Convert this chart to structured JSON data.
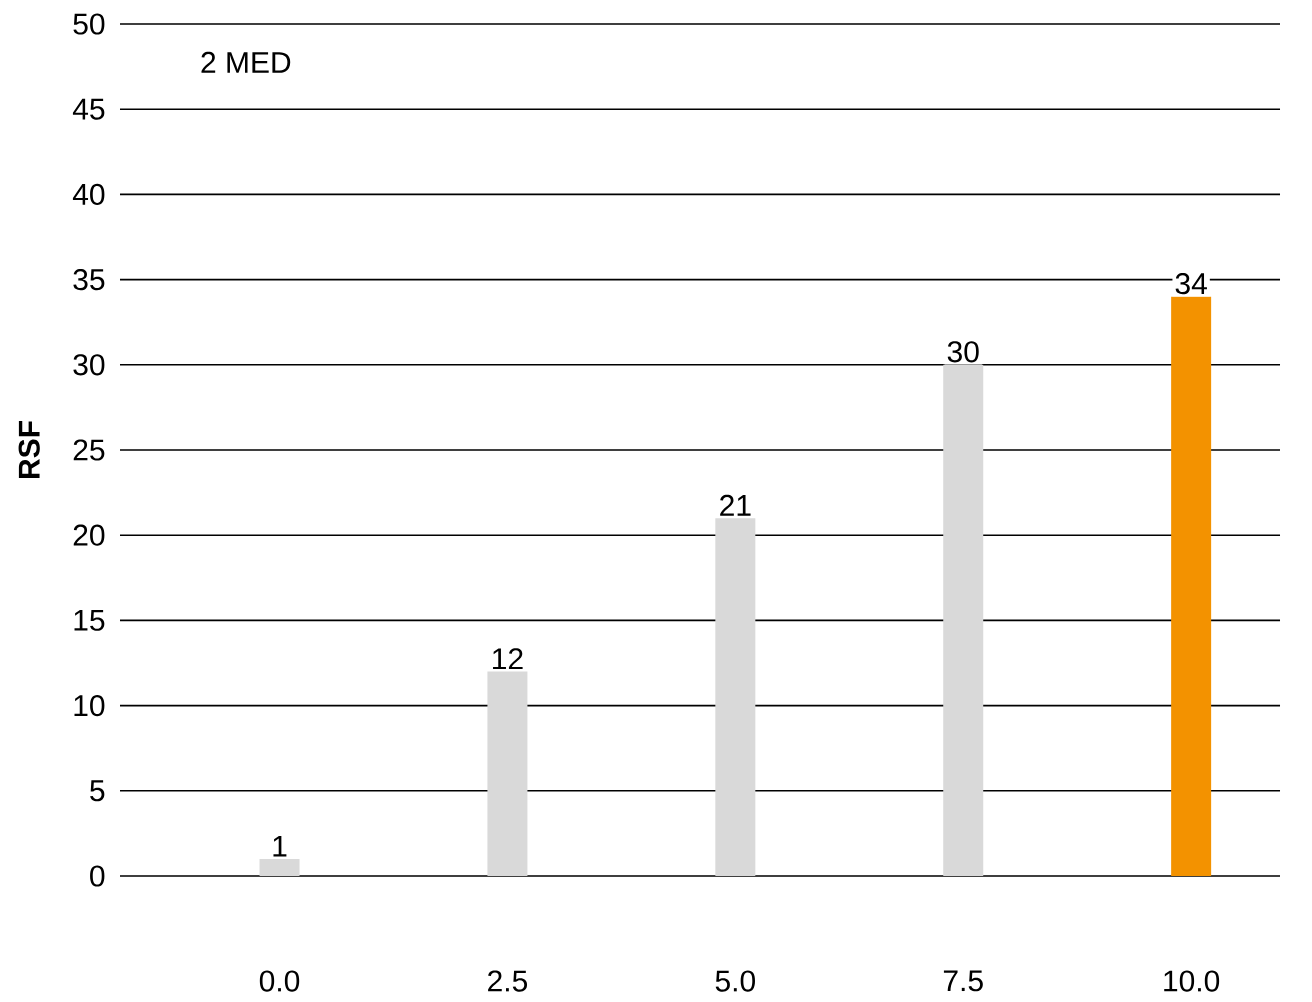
{
  "chart_data": {
    "type": "bar",
    "ylabel": "RSF",
    "annotations": [
      "2 MED"
    ],
    "categories": [
      "0.0",
      "2.5",
      "5.0",
      "7.5",
      "10.0"
    ],
    "values": [
      1,
      12,
      21,
      30,
      34
    ],
    "colors": [
      "#d9d9d9",
      "#d9d9d9",
      "#d9d9d9",
      "#d9d9d9",
      "#f39200"
    ],
    "ylim": [
      0,
      50
    ],
    "yticks": [
      0,
      5,
      10,
      15,
      20,
      25,
      30,
      35,
      40,
      45,
      50
    ],
    "grid": "y",
    "data_labels": true
  }
}
